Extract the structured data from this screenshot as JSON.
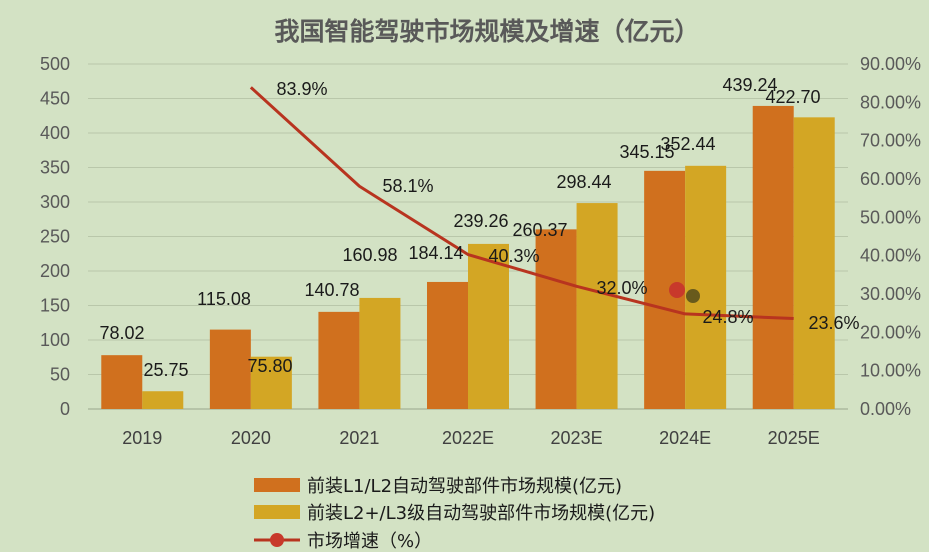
{
  "chart_data": {
    "type": "bar",
    "title": "我国智能驾驶市场规模及增速（亿元）",
    "categories": [
      "2019",
      "2020",
      "2021",
      "2022E",
      "2023E",
      "2024E",
      "2025E"
    ],
    "series": [
      {
        "name": "前装L1/L2自动驾驶部件市场规模(亿元)",
        "type": "bar",
        "axis": "left",
        "color": "#d0701e",
        "values": [
          78.02,
          115.08,
          140.78,
          184.14,
          260.37,
          345.15,
          439.24
        ],
        "labels": [
          "78.02",
          "115.08",
          "140.78",
          "184.14",
          "260.37",
          "345.15",
          "439.24"
        ]
      },
      {
        "name": "前装L2+/L3级自动驾驶部件市场规模(亿元)",
        "type": "bar",
        "axis": "left",
        "color": "#d3a624",
        "values": [
          25.75,
          75.8,
          160.98,
          239.26,
          298.44,
          352.44,
          422.7
        ],
        "labels": [
          "25.75",
          "75.80",
          "160.98",
          "239.26",
          "298.44",
          "352.44",
          "422.70"
        ]
      },
      {
        "name": "市场增速（%）",
        "type": "line",
        "axis": "right",
        "color": "#b8341f",
        "values": [
          null,
          83.9,
          58.1,
          40.3,
          32.0,
          24.8,
          23.6
        ],
        "labels": [
          "",
          "83.9%",
          "58.1%",
          "40.3%",
          "32.0%",
          "24.8%",
          "23.6%"
        ]
      }
    ],
    "y_left": {
      "min": 0,
      "max": 500,
      "ticks": [
        "0",
        "50",
        "100",
        "150",
        "200",
        "250",
        "300",
        "350",
        "400",
        "450",
        "500"
      ]
    },
    "y_right": {
      "min": 0,
      "max": 90,
      "ticks": [
        "0.00%",
        "10.00%",
        "20.00%",
        "30.00%",
        "40.00%",
        "50.00%",
        "60.00%",
        "70.00%",
        "80.00%",
        "90.00%"
      ]
    },
    "grid": true,
    "legend_position": "bottom"
  }
}
